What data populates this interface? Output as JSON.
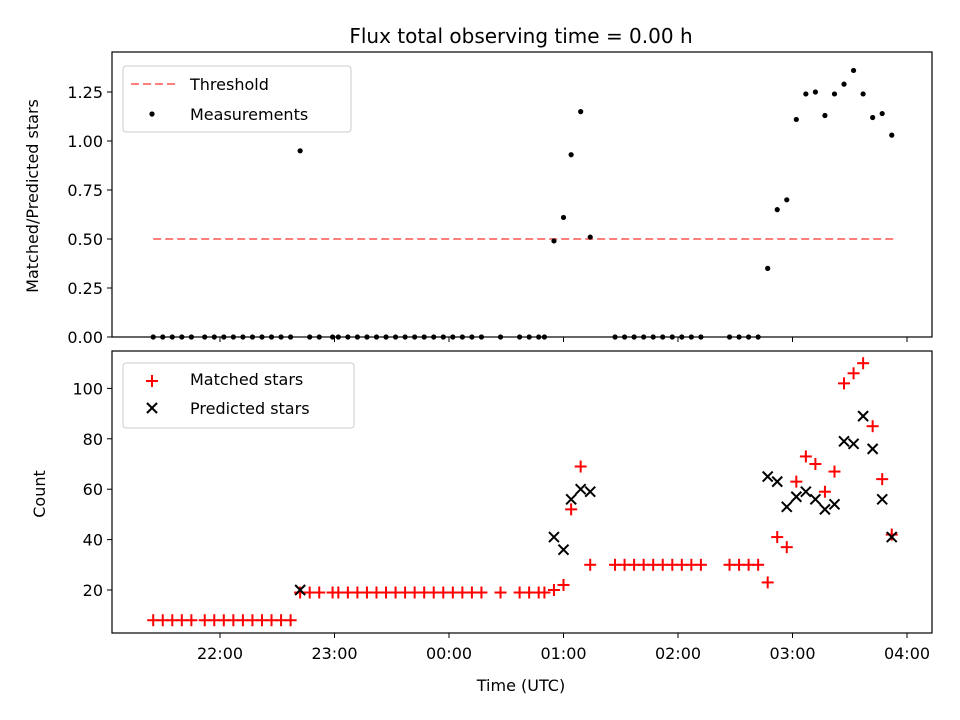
{
  "chart_data": [
    {
      "type": "scatter",
      "title": "Flux total observing time = 0.00 h",
      "xlabel": "",
      "ylabel": "Matched/Predicted stars",
      "ylim": [
        0,
        1.43
      ],
      "yticks": [
        0.0,
        0.25,
        0.5,
        0.75,
        1.0,
        1.25
      ],
      "ytick_labels": [
        "0.00",
        "0.25",
        "0.50",
        "0.75",
        "1.00",
        "1.25"
      ],
      "legend_position": "top-left",
      "threshold": {
        "name": "Threshold",
        "value": 0.5,
        "x_start": "21:25",
        "x_end": "03:53",
        "color": "#ff7f7f",
        "style": "dashed"
      },
      "series": [
        {
          "name": "Measurements",
          "marker": "dot",
          "color": "#000000",
          "points": [
            [
              "21:25",
              0
            ],
            [
              "21:30",
              0
            ],
            [
              "21:35",
              0
            ],
            [
              "21:40",
              0
            ],
            [
              "21:45",
              0
            ],
            [
              "21:52",
              0
            ],
            [
              "21:57",
              0
            ],
            [
              "22:02",
              0
            ],
            [
              "22:07",
              0
            ],
            [
              "22:12",
              0
            ],
            [
              "22:17",
              0
            ],
            [
              "22:22",
              0
            ],
            [
              "22:27",
              0
            ],
            [
              "22:32",
              0
            ],
            [
              "22:37",
              0
            ],
            [
              "22:42",
              0.95
            ],
            [
              "22:47",
              0
            ],
            [
              "22:52",
              0
            ],
            [
              "22:59",
              0
            ],
            [
              "23:02",
              0
            ],
            [
              "23:07",
              0
            ],
            [
              "23:12",
              0
            ],
            [
              "23:17",
              0
            ],
            [
              "23:22",
              0
            ],
            [
              "23:27",
              0
            ],
            [
              "23:32",
              0
            ],
            [
              "23:37",
              0
            ],
            [
              "23:42",
              0
            ],
            [
              "23:47",
              0
            ],
            [
              "23:52",
              0
            ],
            [
              "23:57",
              0
            ],
            [
              "00:02",
              0
            ],
            [
              "00:07",
              0
            ],
            [
              "00:12",
              0
            ],
            [
              "00:17",
              0
            ],
            [
              "00:27",
              0
            ],
            [
              "00:37",
              0
            ],
            [
              "00:42",
              0
            ],
            [
              "00:47",
              0
            ],
            [
              "00:50",
              0
            ],
            [
              "00:55",
              0.49
            ],
            [
              "01:00",
              0.61
            ],
            [
              "01:04",
              0.93
            ],
            [
              "01:09",
              1.15
            ],
            [
              "01:14",
              0.51
            ],
            [
              "01:27",
              0
            ],
            [
              "01:32",
              0
            ],
            [
              "01:37",
              0
            ],
            [
              "01:42",
              0
            ],
            [
              "01:47",
              0
            ],
            [
              "01:52",
              0
            ],
            [
              "01:57",
              0
            ],
            [
              "02:02",
              0
            ],
            [
              "02:07",
              0
            ],
            [
              "02:12",
              0
            ],
            [
              "02:27",
              0
            ],
            [
              "02:32",
              0
            ],
            [
              "02:37",
              0
            ],
            [
              "02:42",
              0
            ],
            [
              "02:47",
              0.35
            ],
            [
              "02:52",
              0.65
            ],
            [
              "02:57",
              0.7
            ],
            [
              "03:02",
              1.11
            ],
            [
              "03:07",
              1.24
            ],
            [
              "03:12",
              1.25
            ],
            [
              "03:17",
              1.13
            ],
            [
              "03:22",
              1.24
            ],
            [
              "03:27",
              1.29
            ],
            [
              "03:32",
              1.36
            ],
            [
              "03:37",
              1.24
            ],
            [
              "03:42",
              1.12
            ],
            [
              "03:47",
              1.14
            ],
            [
              "03:52",
              1.03
            ]
          ]
        }
      ]
    },
    {
      "type": "scatter",
      "title": "",
      "xlabel": "Time (UTC)",
      "ylabel": "Count",
      "ylim": [
        5,
        115
      ],
      "yticks": [
        20,
        40,
        60,
        80,
        100
      ],
      "ytick_labels": [
        "20",
        "40",
        "60",
        "80",
        "100"
      ],
      "xticks": [
        "22:00",
        "23:00",
        "00:00",
        "01:00",
        "02:00",
        "03:00",
        "04:00"
      ],
      "xtick_labels": [
        "22:00",
        "23:00",
        "00:00",
        "01:00",
        "02:00",
        "03:00",
        "04:00"
      ],
      "xlim_start": "21:10",
      "xlim_end": "04:08",
      "legend_position": "top-left",
      "series": [
        {
          "name": "Matched stars",
          "marker": "plus",
          "color": "#ff0000",
          "points": [
            [
              "21:25",
              8
            ],
            [
              "21:30",
              8
            ],
            [
              "21:35",
              8
            ],
            [
              "21:40",
              8
            ],
            [
              "21:45",
              8
            ],
            [
              "21:52",
              8
            ],
            [
              "21:57",
              8
            ],
            [
              "22:02",
              8
            ],
            [
              "22:07",
              8
            ],
            [
              "22:12",
              8
            ],
            [
              "22:17",
              8
            ],
            [
              "22:22",
              8
            ],
            [
              "22:27",
              8
            ],
            [
              "22:32",
              8
            ],
            [
              "22:37",
              8
            ],
            [
              "22:42",
              19
            ],
            [
              "22:47",
              19
            ],
            [
              "22:52",
              19
            ],
            [
              "22:59",
              19
            ],
            [
              "23:02",
              19
            ],
            [
              "23:07",
              19
            ],
            [
              "23:12",
              19
            ],
            [
              "23:17",
              19
            ],
            [
              "23:22",
              19
            ],
            [
              "23:27",
              19
            ],
            [
              "23:32",
              19
            ],
            [
              "23:37",
              19
            ],
            [
              "23:42",
              19
            ],
            [
              "23:47",
              19
            ],
            [
              "23:52",
              19
            ],
            [
              "23:57",
              19
            ],
            [
              "00:02",
              19
            ],
            [
              "00:07",
              19
            ],
            [
              "00:12",
              19
            ],
            [
              "00:17",
              19
            ],
            [
              "00:27",
              19
            ],
            [
              "00:37",
              19
            ],
            [
              "00:42",
              19
            ],
            [
              "00:47",
              19
            ],
            [
              "00:50",
              19
            ],
            [
              "00:55",
              20
            ],
            [
              "01:00",
              22
            ],
            [
              "01:04",
              52
            ],
            [
              "01:09",
              69
            ],
            [
              "01:14",
              30
            ],
            [
              "01:27",
              30
            ],
            [
              "01:32",
              30
            ],
            [
              "01:37",
              30
            ],
            [
              "01:42",
              30
            ],
            [
              "01:47",
              30
            ],
            [
              "01:52",
              30
            ],
            [
              "01:57",
              30
            ],
            [
              "02:02",
              30
            ],
            [
              "02:07",
              30
            ],
            [
              "02:12",
              30
            ],
            [
              "02:27",
              30
            ],
            [
              "02:32",
              30
            ],
            [
              "02:37",
              30
            ],
            [
              "02:42",
              30
            ],
            [
              "02:47",
              23
            ],
            [
              "02:52",
              41
            ],
            [
              "02:57",
              37
            ],
            [
              "03:02",
              63
            ],
            [
              "03:07",
              73
            ],
            [
              "03:12",
              70
            ],
            [
              "03:17",
              59
            ],
            [
              "03:22",
              67
            ],
            [
              "03:27",
              102
            ],
            [
              "03:32",
              106
            ],
            [
              "03:37",
              110
            ],
            [
              "03:42",
              85
            ],
            [
              "03:47",
              64
            ],
            [
              "03:52",
              42
            ]
          ]
        },
        {
          "name": "Predicted stars",
          "marker": "x",
          "color": "#000000",
          "points": [
            [
              "22:42",
              20
            ],
            [
              "00:55",
              41
            ],
            [
              "01:00",
              36
            ],
            [
              "01:04",
              56
            ],
            [
              "01:09",
              60
            ],
            [
              "01:14",
              59
            ],
            [
              "02:47",
              65
            ],
            [
              "02:52",
              63
            ],
            [
              "02:57",
              53
            ],
            [
              "03:02",
              57
            ],
            [
              "03:07",
              59
            ],
            [
              "03:12",
              56
            ],
            [
              "03:17",
              52
            ],
            [
              "03:22",
              54
            ],
            [
              "03:27",
              79
            ],
            [
              "03:32",
              78
            ],
            [
              "03:37",
              89
            ],
            [
              "03:42",
              76
            ],
            [
              "03:47",
              56
            ],
            [
              "03:52",
              41
            ]
          ]
        }
      ]
    }
  ]
}
